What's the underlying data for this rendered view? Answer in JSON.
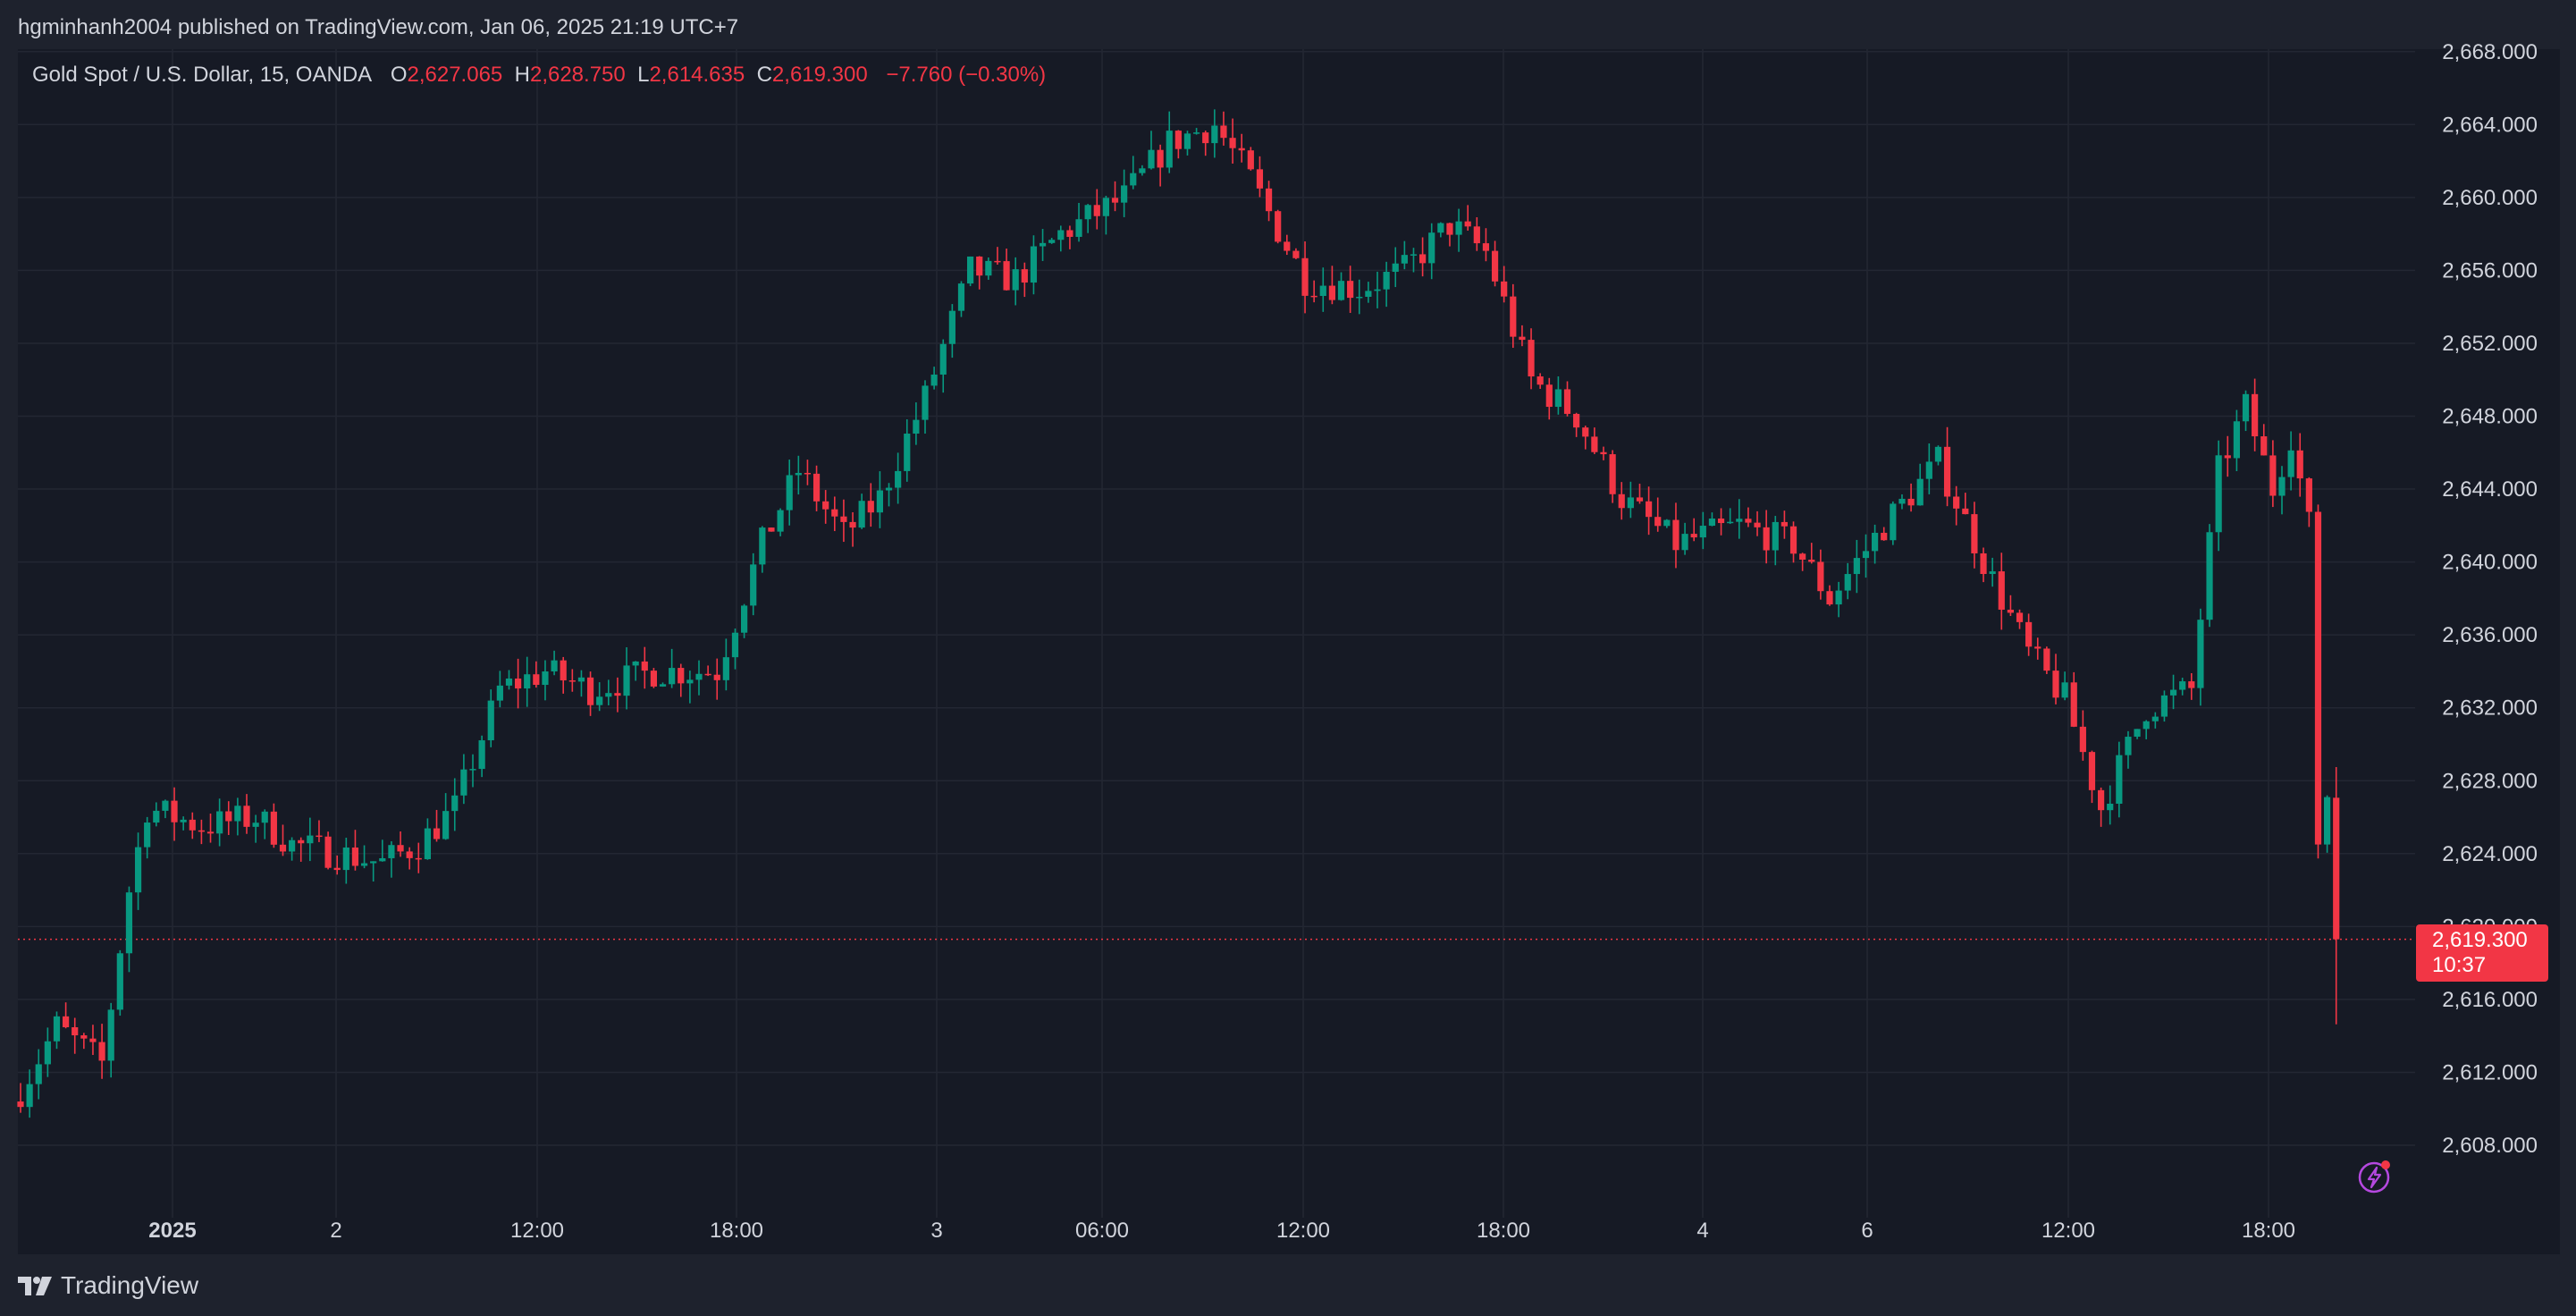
{
  "header": {
    "published_text": "hgminhanh2004 published on TradingView.com, Jan 06, 2025 21:19 UTC+7"
  },
  "legend": {
    "symbol": "Gold Spot / U.S. Dollar, 15, OANDA",
    "o_label": "O",
    "o_value": "2,627.065",
    "h_label": "H",
    "h_value": "2,628.750",
    "l_label": "L",
    "l_value": "2,614.635",
    "c_label": "C",
    "c_value": "2,619.300",
    "change": "−7.760 (−0.30%)"
  },
  "last_price": {
    "price": "2,619.300",
    "countdown": "10:37"
  },
  "brand": {
    "name": "TradingView",
    "logo_icon": "tradingview-logo-icon"
  },
  "colors": {
    "up": "#089981",
    "down": "#f23645",
    "background": "#161a25",
    "grid": "#232733",
    "text": "#d1d4dc"
  },
  "chart_data": {
    "type": "candlestick",
    "x_ticks": [
      "2025",
      "2",
      "12:00",
      "18:00",
      "3",
      "06:00",
      "12:00",
      "18:00",
      "4",
      "6",
      "12:00",
      "18:00"
    ],
    "y_ticks": [
      "2,608.000",
      "2,612.000",
      "2,616.000",
      "2,620.000",
      "2,624.000",
      "2,628.000",
      "2,632.000",
      "2,636.000",
      "2,640.000",
      "2,644.000",
      "2,648.000",
      "2,652.000",
      "2,656.000",
      "2,660.000",
      "2,664.000",
      "2,668.000"
    ],
    "ylim": [
      2605,
      2668
    ],
    "last_close": 2619.3,
    "bars": 257,
    "close_path": [
      [
        0,
        2611.0
      ],
      [
        4,
        2614.5
      ],
      [
        9,
        2612.5
      ],
      [
        12,
        2622.0
      ],
      [
        14,
        2626.5
      ],
      [
        20,
        2625.5
      ],
      [
        26,
        2626.0
      ],
      [
        30,
        2624.5
      ],
      [
        35,
        2624.0
      ],
      [
        40,
        2623.5
      ],
      [
        44,
        2624.5
      ],
      [
        48,
        2626.5
      ],
      [
        53,
        2633.0
      ],
      [
        58,
        2634.0
      ],
      [
        63,
        2633.0
      ],
      [
        70,
        2634.0
      ],
      [
        77,
        2634.0
      ],
      [
        82,
        2641.0
      ],
      [
        86,
        2645.0
      ],
      [
        91,
        2641.5
      ],
      [
        95,
        2643.5
      ],
      [
        100,
        2649.0
      ],
      [
        105,
        2656.0
      ],
      [
        110,
        2655.5
      ],
      [
        115,
        2658.0
      ],
      [
        122,
        2660.0
      ],
      [
        127,
        2663.0
      ],
      [
        132,
        2664.0
      ],
      [
        136,
        2661.0
      ],
      [
        142,
        2655.5
      ],
      [
        148,
        2655.0
      ],
      [
        153,
        2656.0
      ],
      [
        158,
        2658.5
      ],
      [
        162,
        2657.0
      ],
      [
        167,
        2650.0
      ],
      [
        172,
        2648.0
      ],
      [
        177,
        2643.5
      ],
      [
        183,
        2641.0
      ],
      [
        190,
        2642.0
      ],
      [
        196,
        2641.0
      ],
      [
        200,
        2638.0
      ],
      [
        206,
        2642.0
      ],
      [
        212,
        2645.5
      ],
      [
        218,
        2639.0
      ],
      [
        222,
        2635.0
      ],
      [
        226,
        2632.5
      ],
      [
        230,
        2626.5
      ],
      [
        235,
        2632.0
      ],
      [
        240,
        2633.0
      ],
      [
        243,
        2645.0
      ],
      [
        246,
        2648.5
      ],
      [
        249,
        2644.0
      ],
      [
        251,
        2647.0
      ],
      [
        253,
        2642.0
      ],
      [
        254,
        2624.5
      ],
      [
        255,
        2627.1
      ],
      [
        256,
        2619.3
      ]
    ],
    "grid": true
  }
}
